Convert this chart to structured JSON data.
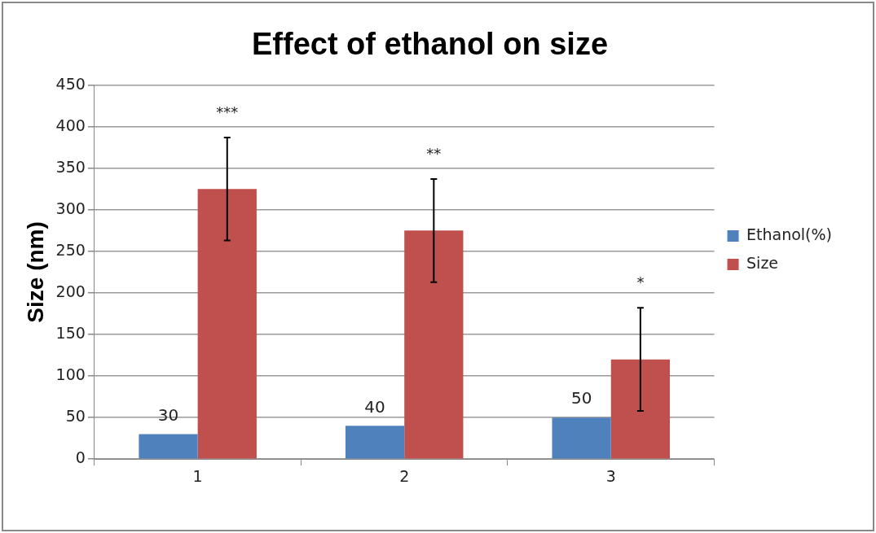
{
  "chart_data": {
    "type": "bar",
    "title": "Effect of ethanol on size",
    "ylabel": "Size (nm)",
    "categories": [
      "1",
      "2",
      "3"
    ],
    "series": [
      {
        "name": "Ethanol(%)",
        "color": "#4f81bd",
        "values": [
          30,
          40,
          50
        ],
        "value_labels": [
          "30",
          "40",
          "50"
        ]
      },
      {
        "name": "Size",
        "color": "#c0504d",
        "values": [
          325,
          275,
          120
        ],
        "errors": [
          62,
          62,
          62
        ]
      }
    ],
    "ylim": [
      0,
      450
    ],
    "yticks": [
      0,
      50,
      100,
      150,
      200,
      250,
      300,
      350,
      400,
      450
    ],
    "grid": "y",
    "legend": "right",
    "annotations": [
      "***",
      "**",
      "*"
    ]
  }
}
